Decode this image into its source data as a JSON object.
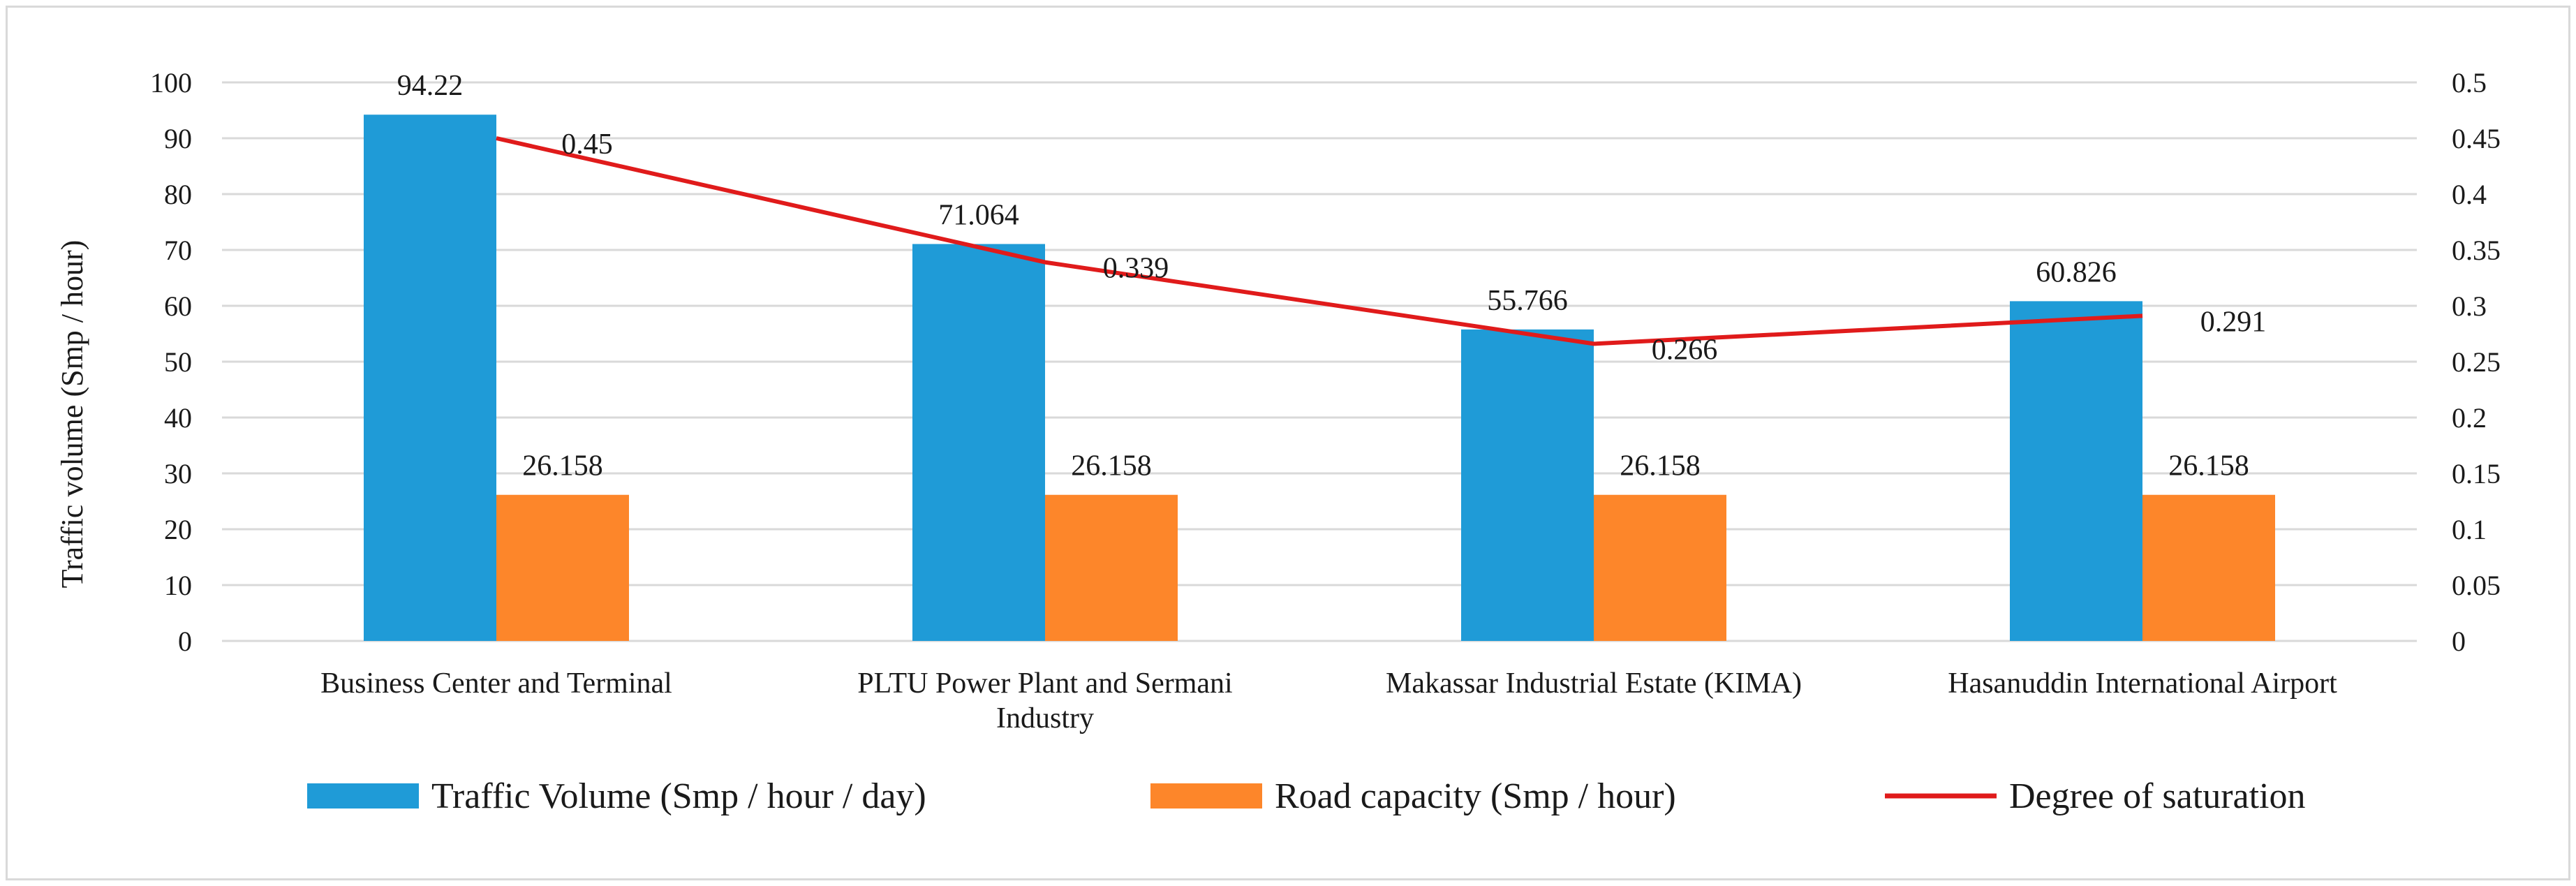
{
  "chart_data": {
    "type": "bar",
    "title": "",
    "categories": [
      [
        "Business Center and Terminal"
      ],
      [
        "PLTU Power Plant and Sermani",
        "Industry"
      ],
      [
        "Makassar Industrial Estate (KIMA)"
      ],
      [
        "Hasanuddin International Airport"
      ]
    ],
    "series": [
      {
        "name": "Traffic Volume (Smp / hour / day)",
        "kind": "bar",
        "axis": "left",
        "color": "#1f9bd7",
        "values": [
          94.22,
          71.064,
          55.766,
          60.826
        ],
        "labels": [
          "94.22",
          "71.064",
          "55.766",
          "60.826"
        ]
      },
      {
        "name": "Road capacity (Smp / hour)",
        "kind": "bar",
        "axis": "left",
        "color": "#fd862a",
        "values": [
          26.158,
          26.158,
          26.158,
          26.158
        ],
        "labels": [
          "26.158",
          "26.158",
          "26.158",
          "26.158"
        ]
      },
      {
        "name": "Degree of saturation",
        "kind": "line",
        "axis": "right",
        "color": "#e01b1b",
        "values": [
          0.45,
          0.339,
          0.266,
          0.291
        ],
        "labels": [
          "0.45",
          "0.339",
          "0.266",
          "0.291"
        ]
      }
    ],
    "ylabel": "Traffic volume (Smp / hour)",
    "ylim": [
      0,
      100
    ],
    "yticks": [
      "0",
      "10",
      "20",
      "30",
      "40",
      "50",
      "60",
      "70",
      "80",
      "90",
      "100"
    ],
    "y2lim": [
      0,
      0.5
    ],
    "y2ticks": [
      "0",
      "0.05",
      "0.1",
      "0.15",
      "0.2",
      "0.25",
      "0.3",
      "0.35",
      "0.4",
      "0.45",
      "0.5"
    ],
    "grid": true,
    "legend": "bottom"
  }
}
